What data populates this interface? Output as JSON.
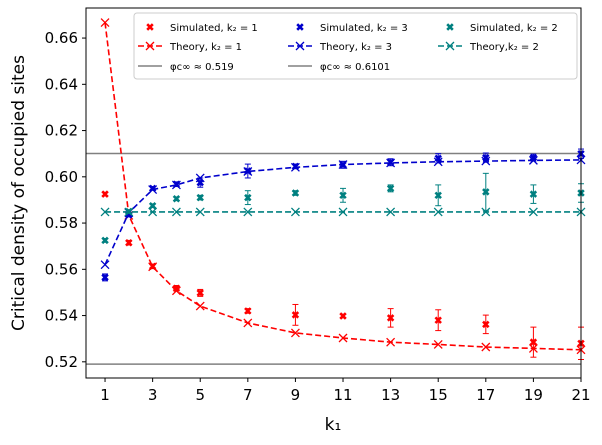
{
  "chart_data": {
    "type": "scatter",
    "xlabel": "k₁",
    "ylabel": "Critical density of occupied sites",
    "xlim": [
      0.2,
      21.0
    ],
    "ylim": [
      0.513,
      0.673
    ],
    "xticks": [
      1,
      3,
      5,
      7,
      9,
      11,
      13,
      15,
      17,
      19,
      21
    ],
    "yticks": [
      0.52,
      0.54,
      0.56,
      0.58,
      0.6,
      0.62,
      0.64,
      0.66
    ],
    "legend_position": "upper-right",
    "colors": {
      "red": "#ff0000",
      "blue": "#0000cc",
      "teal": "#008080",
      "gray": "#808080"
    },
    "simulated": [
      {
        "name": "Simulated, k₂ = 1",
        "color": "#ff0000",
        "x": [
          1,
          2,
          3,
          4,
          5,
          7,
          9,
          11,
          13,
          15,
          17,
          19,
          21
        ],
        "y": [
          0.5925,
          0.5715,
          0.5613,
          0.5518,
          0.5498,
          0.542,
          0.5403,
          0.5398,
          0.539,
          0.538,
          0.5362,
          0.5285,
          0.528
        ],
        "err": [
          0.0008,
          0.001,
          0.001,
          0.0012,
          0.0015,
          0.001,
          0.0045,
          0.0008,
          0.004,
          0.0045,
          0.004,
          0.0065,
          0.007
        ]
      },
      {
        "name": "Simulated, k₂ = 3",
        "color": "#0000cc",
        "x": [
          1,
          2,
          3,
          4,
          5,
          7,
          9,
          11,
          13,
          15,
          17,
          19,
          21
        ],
        "y": [
          0.5565,
          0.5835,
          0.595,
          0.5968,
          0.5975,
          0.6025,
          0.6045,
          0.6052,
          0.6063,
          0.608,
          0.6083,
          0.6083,
          0.61
        ],
        "err": [
          0.0015,
          0.0008,
          0.0008,
          0.001,
          0.002,
          0.003,
          0.001,
          0.0015,
          0.0015,
          0.002,
          0.002,
          0.0015,
          0.002
        ]
      },
      {
        "name": "Simulated, k₂ = 2",
        "color": "#008080",
        "x": [
          1,
          2,
          3,
          4,
          5,
          7,
          9,
          11,
          13,
          15,
          17,
          19,
          21
        ],
        "y": [
          0.5725,
          0.585,
          0.5875,
          0.5905,
          0.591,
          0.591,
          0.593,
          0.592,
          0.595,
          0.592,
          0.5935,
          0.5925,
          0.593
        ],
        "err": [
          0.0008,
          0.0008,
          0.0008,
          0.0008,
          0.001,
          0.003,
          0.001,
          0.003,
          0.0015,
          0.0045,
          0.008,
          0.004,
          0.004
        ]
      }
    ],
    "theory": [
      {
        "name": "Theory, k₂ = 1",
        "color": "#ff0000",
        "x": [
          1,
          2,
          3,
          4,
          5,
          7,
          9,
          11,
          13,
          15,
          17,
          19,
          21
        ],
        "y": [
          0.6667,
          0.5833,
          0.5611,
          0.5507,
          0.5441,
          0.5368,
          0.5325,
          0.5303,
          0.5285,
          0.5275,
          0.5264,
          0.5258,
          0.5252
        ]
      },
      {
        "name": "Theory, k₂ = 3",
        "color": "#0000cc",
        "x": [
          1,
          2,
          3,
          4,
          5,
          7,
          9,
          11,
          13,
          15,
          17,
          19,
          21
        ],
        "y": [
          0.562,
          0.5845,
          0.5945,
          0.5965,
          0.5995,
          0.6023,
          0.6041,
          0.6053,
          0.606,
          0.6065,
          0.6068,
          0.6071,
          0.6073
        ]
      },
      {
        "name": "Theory,k₂ = 2",
        "color": "#008080",
        "x": [
          1,
          2,
          3,
          4,
          5,
          7,
          9,
          11,
          13,
          15,
          17,
          19,
          21
        ],
        "y": [
          0.5848,
          0.5848,
          0.5848,
          0.5848,
          0.5848,
          0.5848,
          0.5848,
          0.5848,
          0.5848,
          0.5848,
          0.5848,
          0.5848,
          0.5848
        ]
      }
    ],
    "hlines": [
      {
        "name": "φc∞ ≈ 0.519",
        "y": 0.519,
        "color": "#808080"
      },
      {
        "name": "φc∞ ≈ 0.6101",
        "y": 0.6101,
        "color": "#808080"
      }
    ],
    "legend": [
      {
        "label": "Simulated, k₂ = 1",
        "kind": "marker-x",
        "color": "#ff0000"
      },
      {
        "label": "Simulated, k₂ = 3",
        "kind": "marker-x",
        "color": "#0000cc"
      },
      {
        "label": "Simulated, k₂ = 2",
        "kind": "marker-x",
        "color": "#008080"
      },
      {
        "label": "Theory, k₂ = 1",
        "kind": "dashed-x",
        "color": "#ff0000"
      },
      {
        "label": "Theory, k₂ = 3",
        "kind": "dashed-x",
        "color": "#0000cc"
      },
      {
        "label": "Theory,k₂ = 2",
        "kind": "dashed-x",
        "color": "#008080"
      },
      {
        "label": "φc∞ ≈ 0.519",
        "kind": "line",
        "color": "#808080"
      },
      {
        "label": "φc∞ ≈ 0.6101",
        "kind": "line",
        "color": "#808080"
      }
    ]
  }
}
